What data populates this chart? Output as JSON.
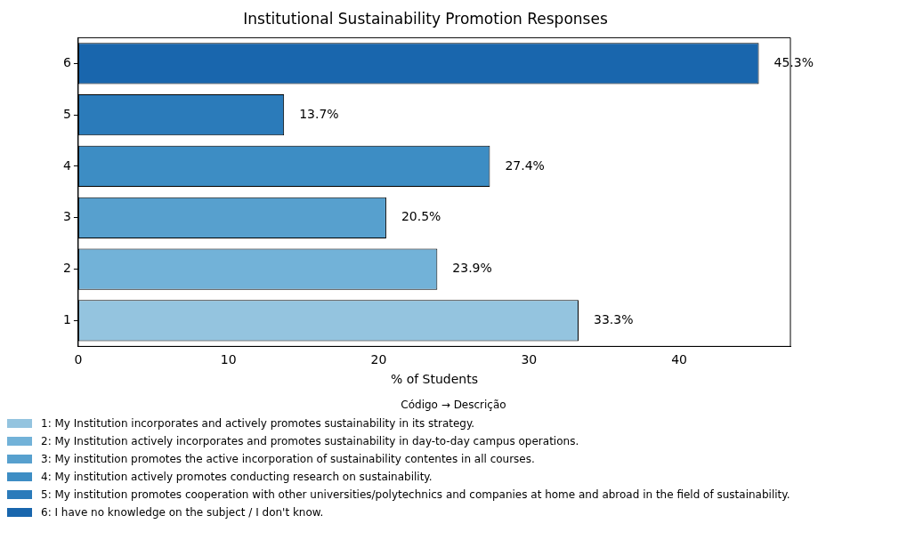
{
  "chart_data": {
    "type": "bar",
    "orientation": "horizontal",
    "stacked": true,
    "title": "Institutional Sustainability Promotion Responses",
    "xlabel": "% of Students",
    "categories": [
      "6",
      "5",
      "4",
      "3",
      "2",
      "1"
    ],
    "series": [
      {
        "name": "1: My Institution incorporates and actively promotes sustainability in its strategy.",
        "color": "#94c4df",
        "values": [
          null,
          null,
          null,
          null,
          null,
          33.3
        ],
        "value_labels": [
          null,
          null,
          null,
          null,
          null,
          "33.3%"
        ]
      },
      {
        "name": "2: My Institution actively incorporates and promotes sustainability in day-to-day campus operations.",
        "color": "#72b2d8",
        "values": [
          null,
          null,
          null,
          null,
          23.9,
          null
        ],
        "value_labels": [
          null,
          null,
          null,
          null,
          "23.9%",
          null
        ]
      },
      {
        "name": "3: My institution promotes the active incorporation of sustainability contentes in all courses.",
        "color": "#57a0ce",
        "values": [
          null,
          null,
          null,
          20.5,
          null,
          null
        ],
        "value_labels": [
          null,
          null,
          null,
          "20.5%",
          null,
          null
        ]
      },
      {
        "name": "4: My institution actively promotes conducting research on sustainability.",
        "color": "#3d8dc4",
        "values": [
          null,
          null,
          27.4,
          null,
          null,
          null
        ],
        "value_labels": [
          null,
          null,
          "27.4%",
          null,
          null,
          null
        ]
      },
      {
        "name": "5: My institution promotes cooperation with other universities/polytechnics and companies at home and abroad in the field of sustainability.",
        "color": "#2b7bba",
        "values": [
          null,
          13.7,
          null,
          null,
          null,
          null
        ],
        "value_labels": [
          null,
          "13.7%",
          null,
          null,
          null,
          null
        ]
      },
      {
        "name": "6: I have no knowledge on the subject / I don't know.",
        "color": "#1966ad",
        "values": [
          45.3,
          null,
          null,
          null,
          null,
          null
        ],
        "value_labels": [
          "45.3%",
          null,
          null,
          null,
          null,
          null
        ]
      }
    ],
    "xlim": [
      0,
      47.4
    ],
    "xticks": [
      0,
      10,
      20,
      30,
      40
    ],
    "grid": false,
    "legend": "bottom",
    "legend_title": "Código → Descrição"
  }
}
